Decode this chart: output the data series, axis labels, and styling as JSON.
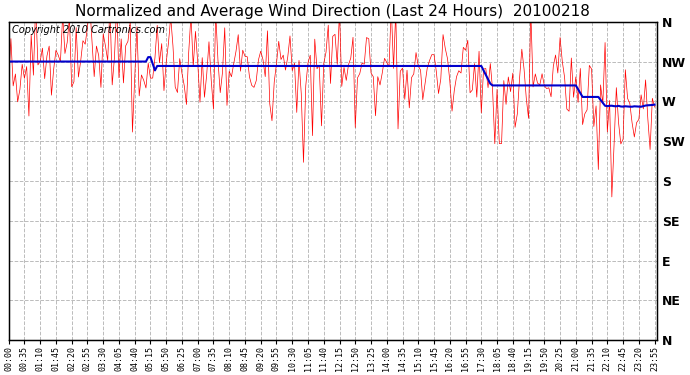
{
  "title": "Normalized and Average Wind Direction (Last 24 Hours)  20100218",
  "copyright": "Copyright 2010 Cartronics.com",
  "background_color": "#ffffff",
  "plot_bg_color": "#ffffff",
  "grid_color": "#bbbbbb",
  "ytick_labels": [
    "N",
    "NW",
    "W",
    "SW",
    "S",
    "SE",
    "E",
    "NE",
    "N"
  ],
  "ytick_values": [
    360,
    315,
    270,
    225,
    180,
    135,
    90,
    45,
    0
  ],
  "ylim": [
    0,
    360
  ],
  "red_line_color": "#ff0000",
  "blue_line_color": "#0000cc",
  "title_fontsize": 11,
  "copyright_fontsize": 7,
  "xtick_interval_minutes": 35,
  "data_interval_minutes": 5,
  "total_hours": 24
}
